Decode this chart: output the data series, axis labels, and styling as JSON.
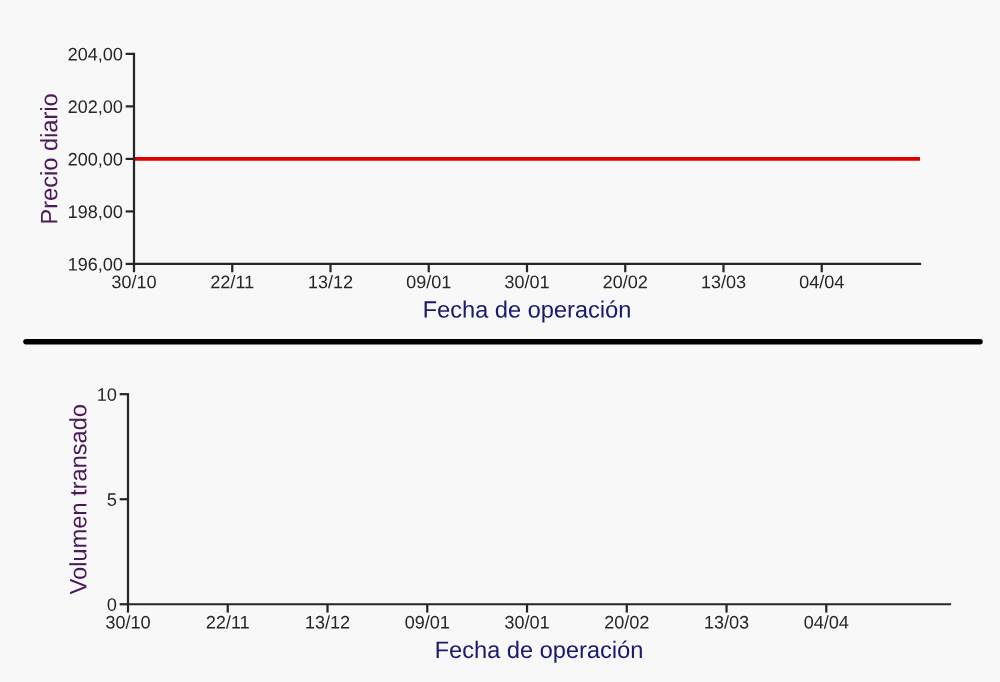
{
  "chart_data": [
    {
      "type": "line",
      "ylabel": "Precio diario",
      "xlabel": "Fecha de operación",
      "categories": [
        "30/10",
        "22/11",
        "13/12",
        "09/01",
        "30/01",
        "20/02",
        "13/03",
        "04/04",
        null
      ],
      "series": [
        {
          "color": "#e00000",
          "values": [
            200,
            200,
            200,
            200,
            200,
            200,
            200,
            200,
            200
          ]
        }
      ],
      "ylim": [
        196,
        204
      ],
      "yticks": [
        {
          "value": 196,
          "label": "196,00"
        },
        {
          "value": 198,
          "label": "198,00"
        },
        {
          "value": 200,
          "label": "200,00"
        },
        {
          "value": 202,
          "label": "202,00"
        },
        {
          "value": 204,
          "label": "204,00"
        }
      ]
    },
    {
      "type": "bar",
      "ylabel": "Volumen transado",
      "xlabel": "Fecha de operación",
      "categories": [
        "30/10",
        "22/11",
        "13/12",
        "09/01",
        "30/01",
        "20/02",
        "13/03",
        "04/04",
        null
      ],
      "ylim": [
        0,
        10
      ],
      "yticks": [
        0,
        5,
        10
      ]
    }
  ]
}
